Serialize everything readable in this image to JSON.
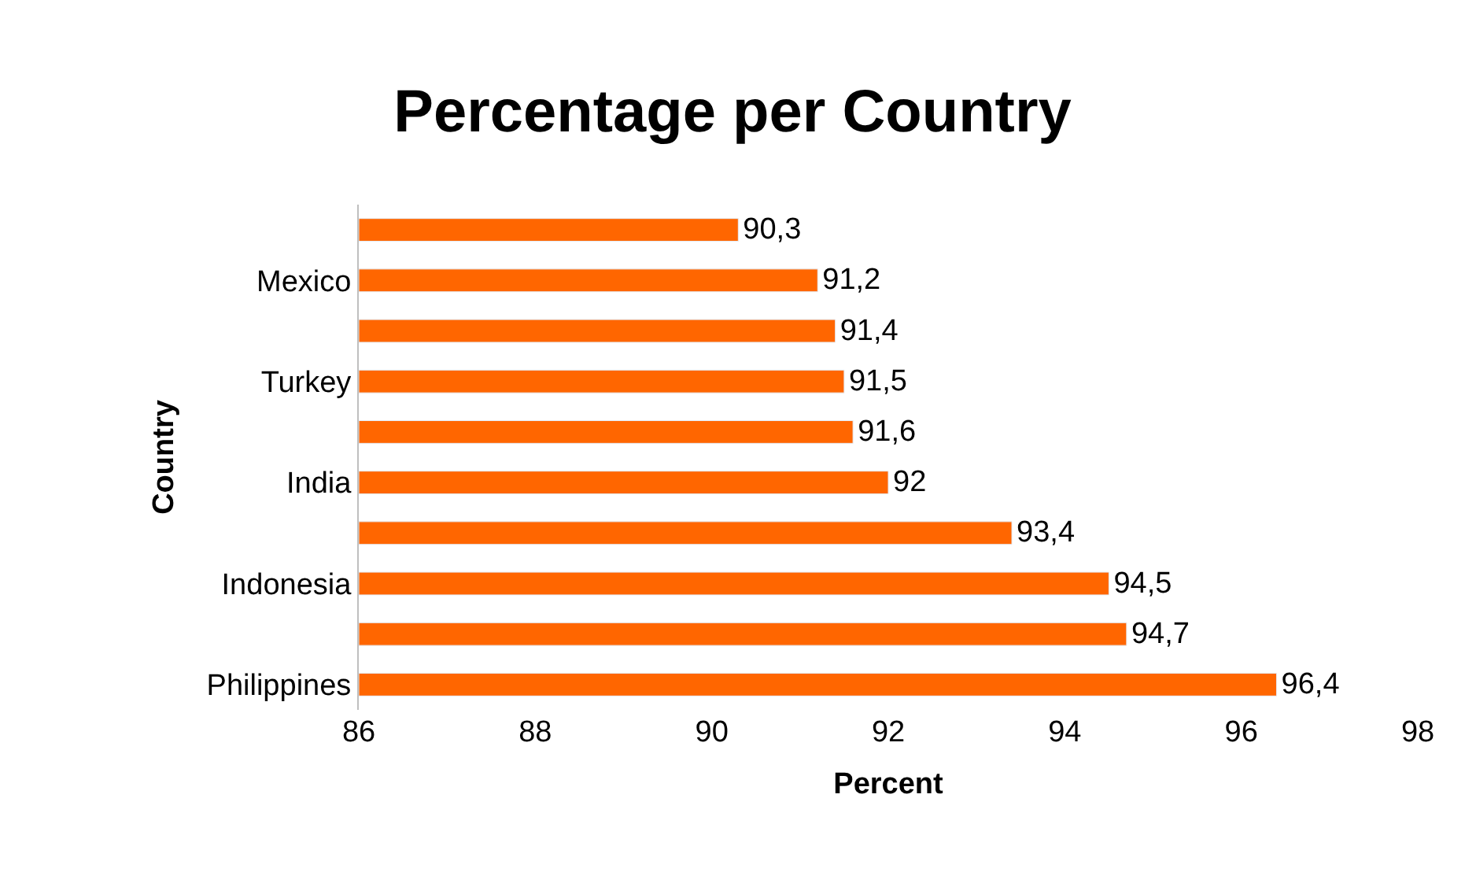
{
  "chart_data": {
    "type": "bar",
    "orientation": "horizontal",
    "title": "Percentage per Country",
    "xlabel": "Percent",
    "ylabel": "Country",
    "categories": [
      null,
      "Mexico",
      null,
      "Turkey",
      null,
      "India",
      null,
      "Indonesia",
      null,
      "Philippines"
    ],
    "values": [
      90.3,
      91.2,
      91.4,
      91.5,
      91.6,
      92,
      93.4,
      94.5,
      94.7,
      96.4
    ],
    "value_labels": [
      "90,3",
      "91,2",
      "91,4",
      "91,5",
      "91,6",
      "92",
      "93,4",
      "94,5",
      "94,7",
      "96,4"
    ],
    "color": "#ff6600",
    "xlim": [
      86,
      98
    ],
    "xticks": [
      86,
      88,
      90,
      92,
      94,
      96,
      98
    ],
    "legend": false
  }
}
